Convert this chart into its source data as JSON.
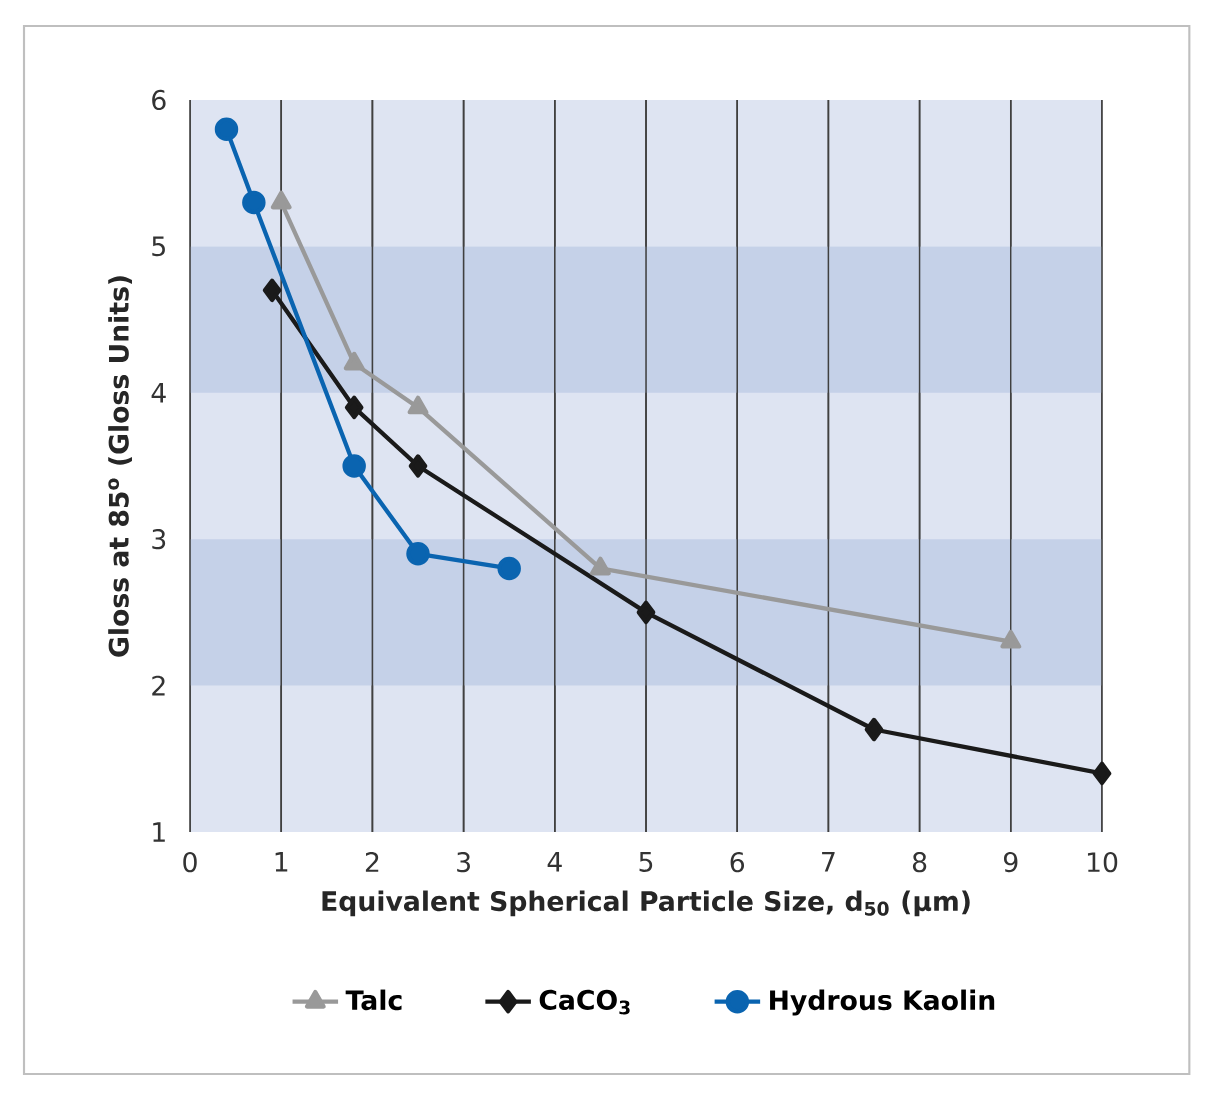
{
  "chart_data": {
    "type": "line",
    "xlabel": "Equivalent Spherical Particle Size, d$_{50}$ (µm)",
    "ylabel": "Gloss at 85$^{o}$ (Gloss Units)",
    "xlim": [
      0,
      10
    ],
    "ylim": [
      1,
      6
    ],
    "xticks": [
      0,
      1,
      2,
      3,
      4,
      5,
      6,
      7,
      8,
      9,
      10
    ],
    "yticks": [
      1,
      2,
      3,
      4,
      5,
      6
    ],
    "grid": "x",
    "legend": "bottom",
    "bands": [
      {
        "axis": "y",
        "from": 4,
        "to": 5,
        "color": "#c5d1e8"
      },
      {
        "axis": "y",
        "from": 2,
        "to": 3,
        "color": "#c5d1e8"
      }
    ],
    "series": [
      {
        "name": "Talc",
        "color": "#999999",
        "marker": "triangle",
        "x": [
          1.0,
          1.8,
          2.5,
          4.5,
          9.0
        ],
        "values": [
          5.3,
          4.2,
          3.9,
          2.8,
          2.3
        ]
      },
      {
        "name": "CaCO$_{3}$",
        "color": "#1a1a1a",
        "marker": "diamond",
        "x": [
          0.9,
          1.8,
          2.5,
          5.0,
          7.5,
          10.0
        ],
        "values": [
          4.7,
          3.9,
          3.5,
          2.5,
          1.7,
          1.4
        ]
      },
      {
        "name": "Hydrous Kaolin",
        "color": "#0a64b0",
        "marker": "circle",
        "x": [
          0.4,
          0.7,
          1.8,
          2.5,
          3.5
        ],
        "values": [
          5.8,
          5.3,
          3.5,
          2.9,
          2.8
        ]
      }
    ]
  }
}
